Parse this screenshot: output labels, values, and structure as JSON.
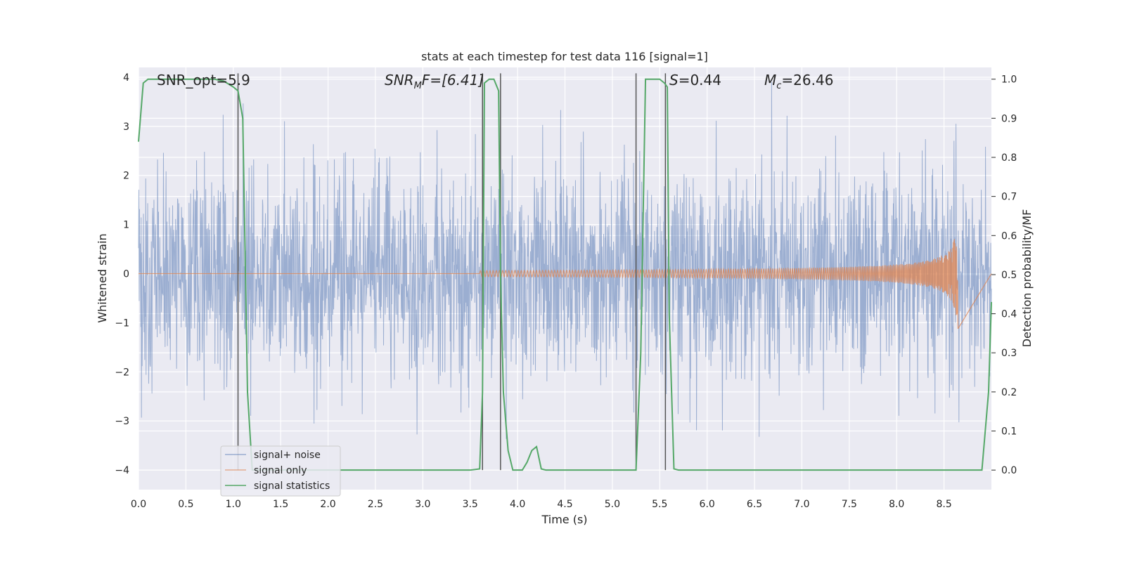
{
  "chart_data": {
    "type": "line",
    "title": "stats at each timestep for test data 116 [signal=1]",
    "xlabel": "Time (s)",
    "ylabel_left": "Whitened strain",
    "ylabel_right": "Detection probability/MF",
    "xlim": [
      0.0,
      9.0
    ],
    "ylim_left": [
      -4.4,
      4.2
    ],
    "ylim_right": [
      -0.05,
      1.03
    ],
    "x_ticks": [
      "0.0",
      "0.5",
      "1.0",
      "1.5",
      "2.0",
      "2.5",
      "3.0",
      "3.5",
      "4.0",
      "4.5",
      "5.0",
      "5.5",
      "6.0",
      "6.5",
      "7.0",
      "7.5",
      "8.0",
      "8.5"
    ],
    "y_ticks_left": [
      "4",
      "3",
      "2",
      "1",
      "0",
      "−1",
      "−2",
      "−3",
      "−4"
    ],
    "y_ticks_right": [
      "1.0",
      "0.9",
      "0.8",
      "0.7",
      "0.6",
      "0.5",
      "0.4",
      "0.3",
      "0.2",
      "0.1",
      "0.0"
    ],
    "grid": true,
    "legend_position": "lower-left",
    "annotations": {
      "snr_opt": "SNR_opt=5.9",
      "snr_mf_prefix": "SNR",
      "snr_mf_sub": "M",
      "snr_mf_suffix": "F=[6.41]",
      "s_prefix": "S",
      "s_suffix": "=0.44",
      "mc_prefix": "M",
      "mc_sub": "c",
      "mc_suffix": "=26.46"
    },
    "series": [
      {
        "name": "signal+ noise",
        "color": "#4c72b0",
        "axis": "left",
        "description_values": "white noise, roughly within [-3.2, 3.9]"
      },
      {
        "name": "signal only",
        "color": "#dd8452",
        "axis": "left",
        "chirp": {
          "start": 3.6,
          "merger": 8.65,
          "peak_amplitude": 1.3
        }
      },
      {
        "name": "signal statistics",
        "color": "#55a868",
        "axis": "right",
        "x": [
          0.0,
          0.05,
          0.1,
          0.2,
          0.3,
          0.4,
          0.5,
          0.6,
          0.7,
          0.8,
          0.9,
          1.0,
          1.05,
          1.1,
          1.15,
          1.2,
          1.3,
          1.5,
          2.0,
          2.5,
          3.0,
          3.5,
          3.6,
          3.63,
          3.65,
          3.7,
          3.75,
          3.8,
          3.82,
          3.85,
          3.9,
          3.95,
          4.05,
          4.1,
          4.15,
          4.2,
          4.25,
          4.3,
          4.5,
          5.0,
          5.25,
          5.3,
          5.35,
          5.5,
          5.55,
          5.58,
          5.6,
          5.65,
          5.7,
          6.0,
          7.0,
          8.0,
          8.5,
          8.9,
          8.97,
          9.0
        ],
        "y": [
          0.84,
          0.99,
          1.0,
          1.0,
          1.0,
          1.0,
          1.0,
          1.0,
          1.0,
          1.0,
          0.995,
          0.98,
          0.97,
          0.9,
          0.2,
          0.0,
          0.0,
          0.0,
          0.0,
          0.0,
          0.0,
          0.0,
          0.003,
          0.2,
          0.99,
          1.0,
          1.0,
          0.97,
          0.5,
          0.2,
          0.05,
          0.0,
          0.0,
          0.02,
          0.05,
          0.06,
          0.003,
          0.0,
          0.0,
          0.0,
          0.0,
          0.3,
          1.0,
          1.0,
          0.99,
          0.98,
          0.4,
          0.003,
          0.0,
          0.0,
          0.0,
          0.0,
          0.0,
          0.0,
          0.2,
          0.43
        ]
      }
    ],
    "vertical_lines_x": [
      1.05,
      3.63,
      3.82,
      5.25,
      5.56
    ]
  }
}
